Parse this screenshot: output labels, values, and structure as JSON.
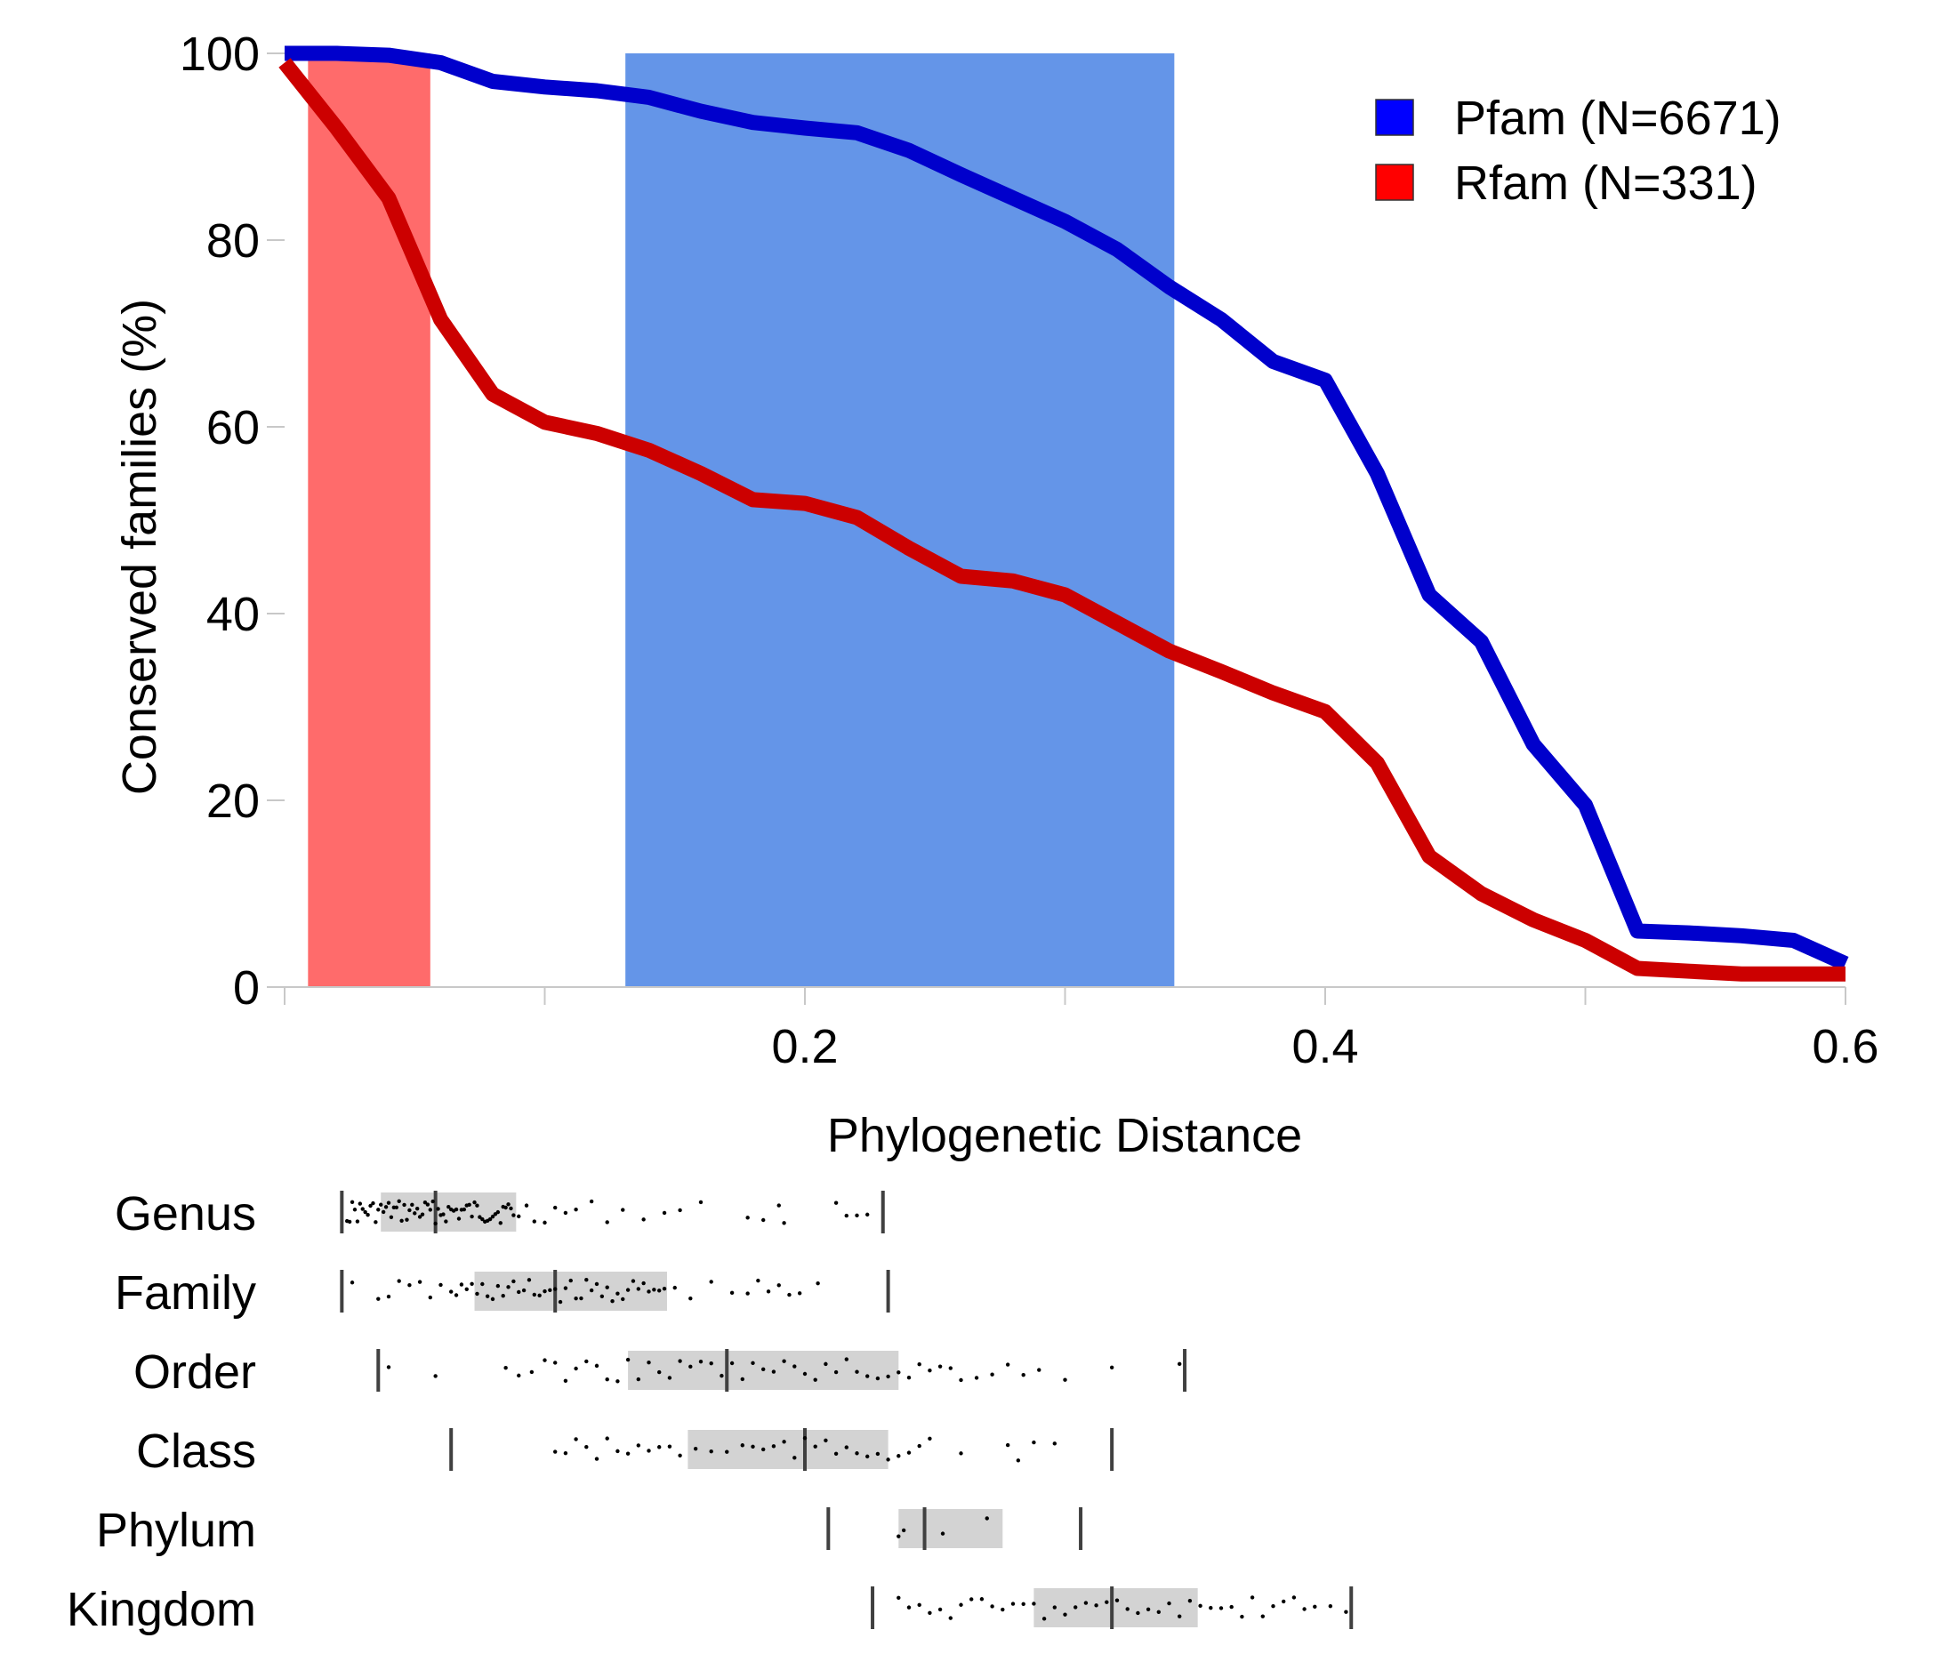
{
  "chart_data": [
    {
      "type": "line",
      "title": "",
      "xlabel": "Phylogenetic Distance",
      "ylabel": "Conserved families (%)",
      "xlim": [
        0,
        0.6
      ],
      "ylim": [
        0,
        100
      ],
      "x_ticks": [
        0,
        0.1,
        0.2,
        0.3,
        0.4,
        0.5,
        0.6
      ],
      "x_tick_labels": [
        "",
        "",
        "0.2",
        "",
        "0.4",
        "",
        "0.6"
      ],
      "y_ticks": [
        0,
        20,
        40,
        60,
        80,
        100
      ],
      "y_tick_labels": [
        "0",
        "20",
        "40",
        "60",
        "80",
        "100"
      ],
      "grid": false,
      "legend_position": "top-right",
      "series": [
        {
          "name": "Pfam (N=6671)",
          "color": "#0000cc",
          "x": [
            0,
            0.02,
            0.04,
            0.06,
            0.08,
            0.1,
            0.12,
            0.14,
            0.16,
            0.18,
            0.2,
            0.22,
            0.24,
            0.26,
            0.28,
            0.3,
            0.32,
            0.34,
            0.36,
            0.38,
            0.4,
            0.42,
            0.44,
            0.46,
            0.48,
            0.5,
            0.52,
            0.54,
            0.56,
            0.58,
            0.6
          ],
          "y": [
            100,
            100,
            99.8,
            99,
            97,
            96.4,
            96,
            95.3,
            93.8,
            92.6,
            92,
            91.5,
            89.6,
            87,
            84.5,
            82,
            79,
            75,
            71.5,
            67,
            65,
            55,
            42,
            37,
            26,
            19.5,
            6,
            5.8,
            5.5,
            5,
            2.5
          ]
        },
        {
          "name": "Rfam (N=331)",
          "color": "#cc0000",
          "x": [
            0,
            0.02,
            0.04,
            0.06,
            0.08,
            0.1,
            0.12,
            0.14,
            0.16,
            0.18,
            0.2,
            0.22,
            0.24,
            0.26,
            0.28,
            0.3,
            0.32,
            0.34,
            0.36,
            0.38,
            0.4,
            0.42,
            0.44,
            0.46,
            0.48,
            0.5,
            0.52,
            0.54,
            0.56,
            0.58,
            0.6
          ],
          "y": [
            99,
            92,
            84.5,
            71.5,
            63.5,
            60.5,
            59.3,
            57.5,
            55,
            52.2,
            51.8,
            50.3,
            47,
            44,
            43.5,
            42,
            39,
            36,
            33.8,
            31.5,
            29.5,
            24,
            14,
            10,
            7.2,
            5,
            2,
            1.7,
            1.4,
            1.4,
            1.4
          ]
        }
      ],
      "shaded_regions": [
        {
          "x": [
            0.009,
            0.056
          ],
          "color": "#ff6b6b"
        },
        {
          "x": [
            0.131,
            0.342
          ],
          "color": "#6495e8"
        }
      ]
    },
    {
      "type": "scatter",
      "title": "",
      "xlabel": "",
      "ylabel": "",
      "xlim": [
        0,
        0.6
      ],
      "categories": [
        "Genus",
        "Family",
        "Order",
        "Class",
        "Phylum",
        "Kingdom"
      ],
      "box_color": "#d3d3d3",
      "summaries": [
        {
          "name": "Genus",
          "min": 0.022,
          "q1": 0.037,
          "median": 0.058,
          "q3": 0.089,
          "max": 0.23
        },
        {
          "name": "Family",
          "min": 0.022,
          "q1": 0.073,
          "median": 0.104,
          "q3": 0.147,
          "max": 0.232
        },
        {
          "name": "Order",
          "min": 0.036,
          "q1": 0.132,
          "median": 0.17,
          "q3": 0.236,
          "max": 0.346
        },
        {
          "name": "Class",
          "min": 0.064,
          "q1": 0.155,
          "median": 0.2,
          "q3": 0.232,
          "max": 0.318
        },
        {
          "name": "Phylum",
          "min": 0.209,
          "q1": 0.236,
          "median": 0.246,
          "q3": 0.276,
          "max": 0.306
        },
        {
          "name": "Kingdom",
          "min": 0.226,
          "q1": 0.288,
          "median": 0.318,
          "q3": 0.351,
          "max": 0.41
        }
      ],
      "points": {
        "Genus": [
          0.024,
          0.025,
          0.026,
          0.027,
          0.028,
          0.029,
          0.03,
          0.031,
          0.032,
          0.033,
          0.034,
          0.035,
          0.036,
          0.037,
          0.038,
          0.039,
          0.04,
          0.041,
          0.042,
          0.043,
          0.044,
          0.045,
          0.046,
          0.047,
          0.048,
          0.049,
          0.05,
          0.051,
          0.052,
          0.053,
          0.054,
          0.055,
          0.056,
          0.057,
          0.058,
          0.059,
          0.06,
          0.061,
          0.062,
          0.063,
          0.064,
          0.065,
          0.066,
          0.067,
          0.068,
          0.069,
          0.07,
          0.071,
          0.072,
          0.073,
          0.074,
          0.075,
          0.076,
          0.077,
          0.078,
          0.079,
          0.08,
          0.081,
          0.082,
          0.083,
          0.084,
          0.085,
          0.086,
          0.087,
          0.088,
          0.09,
          0.093,
          0.096,
          0.1,
          0.104,
          0.108,
          0.112,
          0.118,
          0.124,
          0.13,
          0.138,
          0.146,
          0.152,
          0.16,
          0.178,
          0.184,
          0.19,
          0.192,
          0.212,
          0.216,
          0.22,
          0.224
        ],
        "Family": [
          0.026,
          0.036,
          0.04,
          0.044,
          0.048,
          0.052,
          0.056,
          0.06,
          0.064,
          0.066,
          0.068,
          0.07,
          0.072,
          0.074,
          0.076,
          0.078,
          0.08,
          0.082,
          0.084,
          0.086,
          0.088,
          0.09,
          0.092,
          0.094,
          0.096,
          0.098,
          0.1,
          0.102,
          0.104,
          0.106,
          0.108,
          0.11,
          0.112,
          0.114,
          0.116,
          0.118,
          0.12,
          0.122,
          0.124,
          0.126,
          0.128,
          0.13,
          0.132,
          0.134,
          0.136,
          0.138,
          0.14,
          0.142,
          0.144,
          0.146,
          0.15,
          0.156,
          0.164,
          0.172,
          0.178,
          0.182,
          0.186,
          0.19,
          0.194,
          0.198,
          0.205
        ],
        "Order": [
          0.04,
          0.058,
          0.085,
          0.09,
          0.095,
          0.1,
          0.104,
          0.108,
          0.112,
          0.116,
          0.12,
          0.124,
          0.128,
          0.132,
          0.136,
          0.14,
          0.144,
          0.148,
          0.152,
          0.156,
          0.16,
          0.164,
          0.168,
          0.172,
          0.176,
          0.18,
          0.184,
          0.188,
          0.192,
          0.196,
          0.2,
          0.204,
          0.208,
          0.212,
          0.216,
          0.22,
          0.224,
          0.228,
          0.232,
          0.236,
          0.24,
          0.244,
          0.248,
          0.252,
          0.256,
          0.26,
          0.266,
          0.272,
          0.278,
          0.284,
          0.29,
          0.3,
          0.318,
          0.344
        ],
        "Class": [
          0.104,
          0.108,
          0.112,
          0.116,
          0.12,
          0.124,
          0.128,
          0.132,
          0.136,
          0.14,
          0.144,
          0.148,
          0.152,
          0.158,
          0.164,
          0.17,
          0.176,
          0.18,
          0.184,
          0.188,
          0.192,
          0.196,
          0.2,
          0.204,
          0.208,
          0.212,
          0.216,
          0.22,
          0.224,
          0.228,
          0.232,
          0.236,
          0.24,
          0.244,
          0.248,
          0.26,
          0.278,
          0.282,
          0.288,
          0.296
        ],
        "Phylum": [
          0.236,
          0.238,
          0.253,
          0.27
        ],
        "Kingdom": [
          0.236,
          0.24,
          0.244,
          0.248,
          0.252,
          0.256,
          0.26,
          0.264,
          0.268,
          0.272,
          0.276,
          0.28,
          0.284,
          0.288,
          0.292,
          0.296,
          0.3,
          0.304,
          0.308,
          0.312,
          0.316,
          0.32,
          0.324,
          0.328,
          0.332,
          0.336,
          0.34,
          0.344,
          0.348,
          0.352,
          0.356,
          0.36,
          0.364,
          0.368,
          0.372,
          0.376,
          0.38,
          0.384,
          0.388,
          0.392,
          0.396,
          0.402,
          0.408
        ]
      }
    }
  ]
}
